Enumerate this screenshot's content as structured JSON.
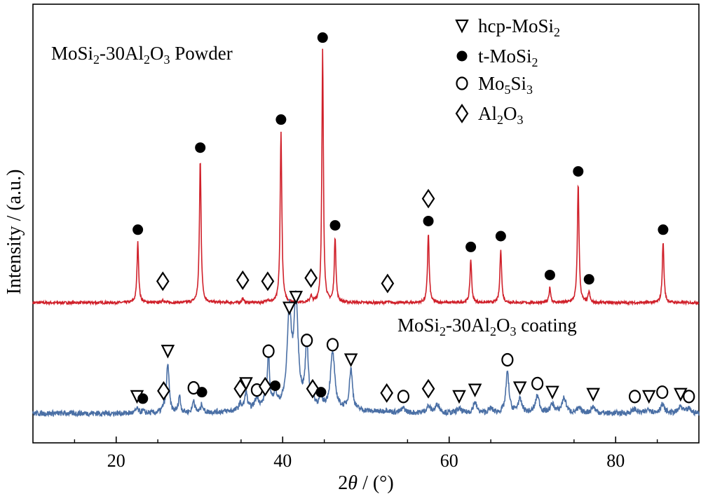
{
  "chart_data": {
    "type": "line",
    "xlabel_prefix": "2",
    "xlabel_var": "θ",
    "xlabel_suffix": " / (°)",
    "ylabel": "Intensity / (a.u.)",
    "xlim": [
      10,
      90
    ],
    "xticks": [
      20,
      40,
      60,
      80
    ],
    "xtick_labels": [
      "20",
      "40",
      "60",
      "80"
    ],
    "yticks_shown": false,
    "legend_position": "top-right",
    "legend": [
      {
        "symbol": "open-down-triangle",
        "main": "hcp-MoSi",
        "sub": "2",
        "rest": ""
      },
      {
        "symbol": "filled-circle",
        "main": "t-MoSi",
        "sub": "2",
        "rest": ""
      },
      {
        "symbol": "open-circle",
        "main": "Mo",
        "sub": "5",
        "mid": "Si",
        "sub2": "3"
      },
      {
        "symbol": "open-diamond",
        "main": "Al",
        "sub": "2",
        "mid": "O",
        "sub2": "3"
      }
    ],
    "series": [
      {
        "name": "MoSi2-30Al2O3 Powder",
        "label_parts": [
          "MoSi",
          "2",
          "-30Al",
          "2",
          "O",
          "3",
          " Powder"
        ],
        "color": "#d0202a",
        "baseline": 0.5,
        "peaks": [
          {
            "x": 22.6,
            "h": 0.28,
            "w": 0.12,
            "marker": "filled-circle"
          },
          {
            "x": 25.6,
            "h": 0.015,
            "w": 0.12,
            "marker": "open-diamond"
          },
          {
            "x": 30.1,
            "h": 0.66,
            "w": 0.12,
            "marker": "filled-circle"
          },
          {
            "x": 35.2,
            "h": 0.02,
            "w": 0.12,
            "marker": "open-diamond"
          },
          {
            "x": 38.2,
            "h": 0.015,
            "w": 0.12,
            "marker": "open-diamond"
          },
          {
            "x": 39.8,
            "h": 0.79,
            "w": 0.12,
            "marker": "filled-circle"
          },
          {
            "x": 43.4,
            "h": 0.03,
            "w": 0.12,
            "marker": "open-diamond"
          },
          {
            "x": 44.8,
            "h": 1.17,
            "w": 0.11,
            "marker": "filled-circle"
          },
          {
            "x": 46.3,
            "h": 0.3,
            "w": 0.12,
            "marker": "filled-circle"
          },
          {
            "x": 52.6,
            "h": 0.005,
            "w": 0.12,
            "marker": "open-diamond"
          },
          {
            "x": 57.5,
            "h": 0.32,
            "w": 0.12,
            "marker": "filled-circle",
            "extra_marker": "open-diamond"
          },
          {
            "x": 62.6,
            "h": 0.2,
            "w": 0.12,
            "marker": "filled-circle"
          },
          {
            "x": 66.2,
            "h": 0.25,
            "w": 0.12,
            "marker": "filled-circle"
          },
          {
            "x": 72.1,
            "h": 0.07,
            "w": 0.12,
            "marker": "filled-circle"
          },
          {
            "x": 75.5,
            "h": 0.55,
            "w": 0.12,
            "marker": "filled-circle"
          },
          {
            "x": 76.8,
            "h": 0.05,
            "w": 0.12,
            "marker": "filled-circle"
          },
          {
            "x": 85.7,
            "h": 0.28,
            "w": 0.12,
            "marker": "filled-circle"
          }
        ]
      },
      {
        "name": "MoSi2-30Al2O3 coating",
        "label_parts": [
          "MoSi",
          "2",
          "-30Al",
          "2",
          "O",
          "3",
          " coating"
        ],
        "color": "#4a6fa5",
        "baseline": 0.0,
        "peaks": [
          {
            "x": 22.5,
            "h": 0.02,
            "w": 0.2,
            "marker": "open-down-triangle"
          },
          {
            "x": 23.2,
            "h": 0.01,
            "w": 0.2,
            "marker": "filled-circle"
          },
          {
            "x": 25.7,
            "h": 0.02,
            "w": 0.2,
            "marker": "open-diamond"
          },
          {
            "x": 26.2,
            "h": 0.23,
            "w": 0.18,
            "marker": "open-down-triangle"
          },
          {
            "x": 27.6,
            "h": 0.08,
            "w": 0.15,
            "marker": null
          },
          {
            "x": 29.3,
            "h": 0.06,
            "w": 0.15,
            "marker": "open-circle"
          },
          {
            "x": 30.3,
            "h": 0.04,
            "w": 0.15,
            "marker": "filled-circle"
          },
          {
            "x": 34.9,
            "h": 0.03,
            "w": 0.2,
            "marker": "open-diamond"
          },
          {
            "x": 35.6,
            "h": 0.08,
            "w": 0.18,
            "marker": "open-down-triangle"
          },
          {
            "x": 36.9,
            "h": 0.05,
            "w": 0.3,
            "marker": "open-circle"
          },
          {
            "x": 37.9,
            "h": 0.04,
            "w": 0.2,
            "marker": "open-diamond"
          },
          {
            "x": 38.3,
            "h": 0.23,
            "w": 0.16,
            "marker": "open-circle"
          },
          {
            "x": 39.1,
            "h": 0.07,
            "w": 0.2,
            "marker": "filled-circle"
          },
          {
            "x": 40.8,
            "h": 0.43,
            "w": 0.3,
            "marker": "open-down-triangle"
          },
          {
            "x": 41.6,
            "h": 0.48,
            "w": 0.3,
            "marker": "open-down-triangle"
          },
          {
            "x": 42.9,
            "h": 0.28,
            "w": 0.22,
            "marker": "open-circle"
          },
          {
            "x": 43.6,
            "h": 0.03,
            "w": 0.2,
            "marker": "open-diamond"
          },
          {
            "x": 44.6,
            "h": 0.04,
            "w": 0.2,
            "marker": "filled-circle"
          },
          {
            "x": 46.0,
            "h": 0.26,
            "w": 0.3,
            "marker": "open-circle"
          },
          {
            "x": 48.2,
            "h": 0.19,
            "w": 0.22,
            "marker": "open-down-triangle"
          },
          {
            "x": 52.5,
            "h": 0.01,
            "w": 0.3,
            "marker": "open-diamond"
          },
          {
            "x": 54.5,
            "h": 0.02,
            "w": 0.3,
            "marker": "open-circle"
          },
          {
            "x": 57.5,
            "h": 0.03,
            "w": 0.3,
            "marker": "open-diamond"
          },
          {
            "x": 58.6,
            "h": 0.04,
            "w": 0.3,
            "marker": null
          },
          {
            "x": 61.2,
            "h": 0.02,
            "w": 0.3,
            "marker": "open-down-triangle"
          },
          {
            "x": 63.1,
            "h": 0.05,
            "w": 0.25,
            "marker": "open-down-triangle"
          },
          {
            "x": 65.0,
            "h": 0.02,
            "w": 0.3,
            "marker": null
          },
          {
            "x": 67.0,
            "h": 0.19,
            "w": 0.22,
            "marker": "open-circle"
          },
          {
            "x": 68.5,
            "h": 0.06,
            "w": 0.3,
            "marker": "open-down-triangle"
          },
          {
            "x": 70.6,
            "h": 0.08,
            "w": 0.28,
            "marker": "open-circle"
          },
          {
            "x": 72.4,
            "h": 0.04,
            "w": 0.3,
            "marker": "open-down-triangle"
          },
          {
            "x": 73.8,
            "h": 0.07,
            "w": 0.3,
            "marker": null
          },
          {
            "x": 75.6,
            "h": 0.02,
            "w": 0.3,
            "marker": null
          },
          {
            "x": 77.3,
            "h": 0.03,
            "w": 0.3,
            "marker": "open-down-triangle"
          },
          {
            "x": 82.3,
            "h": 0.02,
            "w": 0.3,
            "marker": "open-circle"
          },
          {
            "x": 84.0,
            "h": 0.02,
            "w": 0.3,
            "marker": "open-down-triangle"
          },
          {
            "x": 85.6,
            "h": 0.04,
            "w": 0.3,
            "marker": "open-circle"
          },
          {
            "x": 87.8,
            "h": 0.03,
            "w": 0.3,
            "marker": "open-down-triangle"
          },
          {
            "x": 88.8,
            "h": 0.02,
            "w": 0.3,
            "marker": "open-circle"
          }
        ]
      }
    ]
  }
}
